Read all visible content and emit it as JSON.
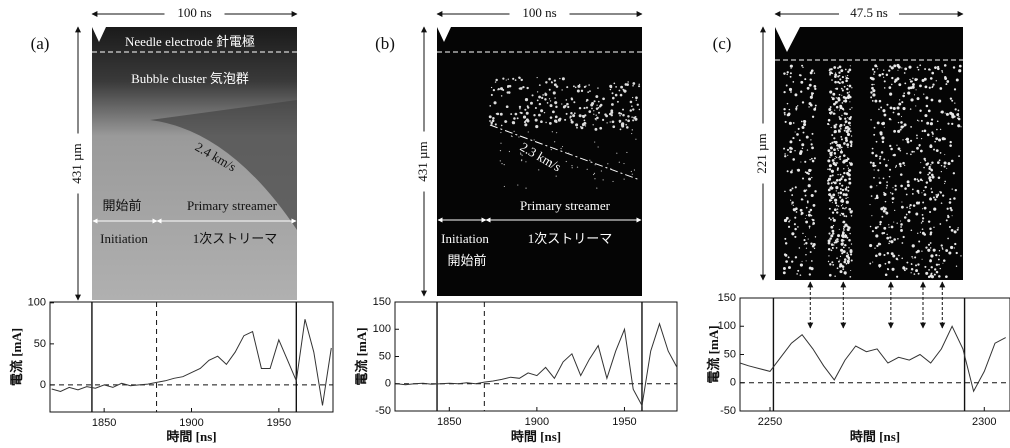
{
  "panels": [
    {
      "label": "(a)",
      "span": "100 ns",
      "height": "431 µm",
      "needle": "Needle electrode 針電極",
      "bubble": "Bubble cluster  気泡群",
      "speed": "2.4 km/s",
      "before": "開始前",
      "primary": "Primary streamer",
      "initiation": "Initiation",
      "primary_ja": "1次ストリーマ"
    },
    {
      "label": "(b)",
      "span": "100 ns",
      "height": "431 µm",
      "speed": "2.3 km/s",
      "primary": "Primary streamer",
      "initiation": "Initiation",
      "primary_ja": "1次ストリーマ",
      "before": "開始前"
    },
    {
      "label": "(c)",
      "span": "47.5 ns",
      "height": "221 µm"
    }
  ],
  "chart_data": [
    {
      "type": "line",
      "xlabel": "時間 [ns]",
      "ylabel": "電流 [mA]",
      "color": "#333333",
      "xlim": [
        1819,
        1981
      ],
      "ylim": [
        -33,
        101
      ],
      "xticks": [
        1850,
        1900,
        1950
      ],
      "yticks": [
        0,
        50,
        100
      ],
      "solid_lines": [
        1843,
        1960
      ],
      "dashed_lines": [
        1880
      ],
      "x": [
        1820,
        1825,
        1830,
        1835,
        1840,
        1845,
        1850,
        1855,
        1860,
        1865,
        1870,
        1875,
        1880,
        1885,
        1890,
        1895,
        1900,
        1905,
        1910,
        1915,
        1920,
        1925,
        1930,
        1935,
        1940,
        1945,
        1950,
        1955,
        1960,
        1965,
        1970,
        1975,
        1980
      ],
      "values": [
        -5,
        -8,
        -3,
        -6,
        -2,
        -4,
        0,
        -3,
        2,
        -1,
        0,
        1,
        3,
        5,
        8,
        10,
        15,
        20,
        30,
        35,
        25,
        40,
        60,
        65,
        20,
        20,
        55,
        30,
        5,
        80,
        40,
        -25,
        45
      ]
    },
    {
      "type": "line",
      "xlabel": "時間 [ns]",
      "ylabel": "電流 [mA]",
      "color": "#333333",
      "xlim": [
        1819,
        1980
      ],
      "ylim": [
        -50,
        150
      ],
      "xticks": [
        1850,
        1900,
        1950
      ],
      "yticks": [
        -50,
        0,
        50,
        100,
        150
      ],
      "solid_lines": [
        1843,
        1960
      ],
      "dashed_lines": [
        1870
      ],
      "x": [
        1820,
        1825,
        1830,
        1835,
        1840,
        1845,
        1850,
        1855,
        1860,
        1865,
        1870,
        1875,
        1880,
        1885,
        1890,
        1895,
        1900,
        1905,
        1910,
        1915,
        1920,
        1925,
        1930,
        1935,
        1940,
        1945,
        1950,
        1955,
        1960,
        1965,
        1970,
        1975,
        1980
      ],
      "values": [
        0,
        -2,
        0,
        1,
        -1,
        0,
        1,
        0,
        2,
        0,
        3,
        5,
        8,
        12,
        10,
        20,
        15,
        30,
        10,
        40,
        55,
        15,
        45,
        70,
        10,
        60,
        100,
        -10,
        -40,
        60,
        110,
        60,
        30
      ]
    },
    {
      "type": "line",
      "xlabel": "時間 [ns]",
      "ylabel": "電流 [mA]",
      "color": "#333333",
      "xlim": [
        2243,
        2306
      ],
      "ylim": [
        -50,
        150
      ],
      "xticks": [
        2250,
        2300
      ],
      "yticks": [
        -50,
        0,
        50,
        100,
        150
      ],
      "solid_lines": [
        2250.8,
        2295.4
      ],
      "arrow_lines": [
        2259.4,
        2267.1,
        2278.2,
        2285.7,
        2290.2
      ],
      "x": [
        2243,
        2245,
        2247.5,
        2250,
        2252.5,
        2255,
        2257.5,
        2260,
        2262.5,
        2265,
        2267.5,
        2270,
        2272.5,
        2275,
        2277.5,
        2280,
        2282.5,
        2285,
        2287.5,
        2290,
        2292.5,
        2295,
        2297.5,
        2300,
        2302.5,
        2305
      ],
      "values": [
        35,
        30,
        25,
        20,
        45,
        70,
        85,
        60,
        30,
        5,
        40,
        65,
        55,
        60,
        35,
        45,
        40,
        50,
        35,
        60,
        100,
        60,
        -15,
        20,
        70,
        80
      ]
    }
  ]
}
